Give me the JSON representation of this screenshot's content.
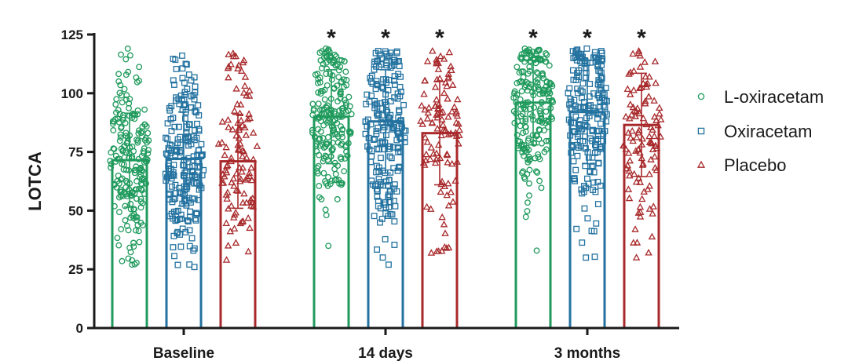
{
  "chart_data": {
    "type": "bar",
    "title": "",
    "xlabel": "",
    "ylabel": "LOTCA",
    "ylim": [
      0,
      125
    ],
    "yticks": [
      0,
      25,
      50,
      75,
      100,
      125
    ],
    "grid": false,
    "legend_position": "right",
    "categories": [
      "Baseline",
      "14 days",
      "3 months"
    ],
    "series": [
      {
        "name": "L-oxiracetam",
        "marker": "circle",
        "color": "#1f9a5c",
        "values": [
          71.5,
          90,
          96
        ],
        "sd": [
          20,
          20,
          18
        ],
        "range": [
          [
            27,
            119
          ],
          [
            35,
            119
          ],
          [
            33,
            119
          ]
        ]
      },
      {
        "name": "Oxiracetam",
        "marker": "square",
        "color": "#2372a0",
        "values": [
          72,
          88,
          92
        ],
        "sd": [
          20,
          22,
          22
        ],
        "range": [
          [
            26,
            116
          ],
          [
            27,
            118
          ],
          [
            30,
            119
          ]
        ]
      },
      {
        "name": "Placebo",
        "marker": "triangle",
        "color": "#a8292b",
        "values": [
          71,
          83,
          86.5
        ],
        "sd": [
          20,
          22,
          22
        ],
        "range": [
          [
            29,
            117
          ],
          [
            32,
            118
          ],
          [
            30,
            118
          ]
        ]
      }
    ],
    "significance": [
      {
        "category": "14 days",
        "series": "L-oxiracetam",
        "label": "*"
      },
      {
        "category": "14 days",
        "series": "Oxiracetam",
        "label": "*"
      },
      {
        "category": "14 days",
        "series": "Placebo",
        "label": "*"
      },
      {
        "category": "3 months",
        "series": "L-oxiracetam",
        "label": "*"
      },
      {
        "category": "3 months",
        "series": "Oxiracetam",
        "label": "*"
      },
      {
        "category": "3 months",
        "series": "Placebo",
        "label": "*"
      }
    ]
  }
}
